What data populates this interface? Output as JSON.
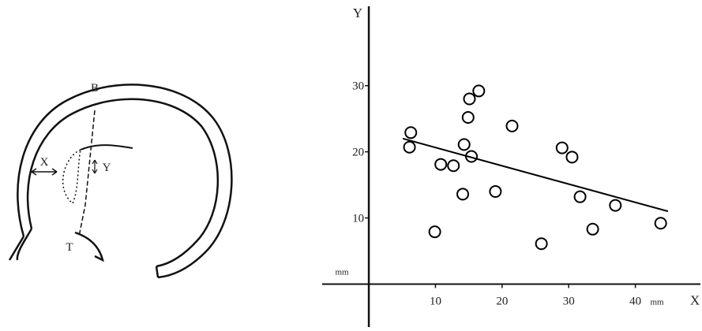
{
  "diagram": {
    "labels": [
      "B",
      "X",
      "Y",
      "T"
    ]
  },
  "chart_data": {
    "type": "scatter",
    "x_label": "X",
    "y_label": "Y",
    "x_unit": "mm",
    "y_unit": "mm",
    "x": [
      6.3,
      6.1,
      10.8,
      12.7,
      9.9,
      14.1,
      14.3,
      14.9,
      15.1,
      16.5,
      15.4,
      19.0,
      21.5,
      25.9,
      29.0,
      30.5,
      31.7,
      37.0,
      33.6,
      43.8
    ],
    "y": [
      22.9,
      20.7,
      18.1,
      17.9,
      7.9,
      13.6,
      21.1,
      25.2,
      28.0,
      29.2,
      19.3,
      14.0,
      23.9,
      6.1,
      20.6,
      19.2,
      13.2,
      11.9,
      8.3,
      9.2
    ],
    "fit_line": {
      "x": [
        5.1,
        44.9
      ],
      "y": [
        22.0,
        11.0
      ]
    },
    "xlim": [
      -7,
      50
    ],
    "ylim": [
      -6.5,
      42
    ],
    "xticks": [
      10,
      20,
      30,
      40
    ],
    "yticks": [
      10,
      20,
      30
    ],
    "color": "#000000"
  }
}
